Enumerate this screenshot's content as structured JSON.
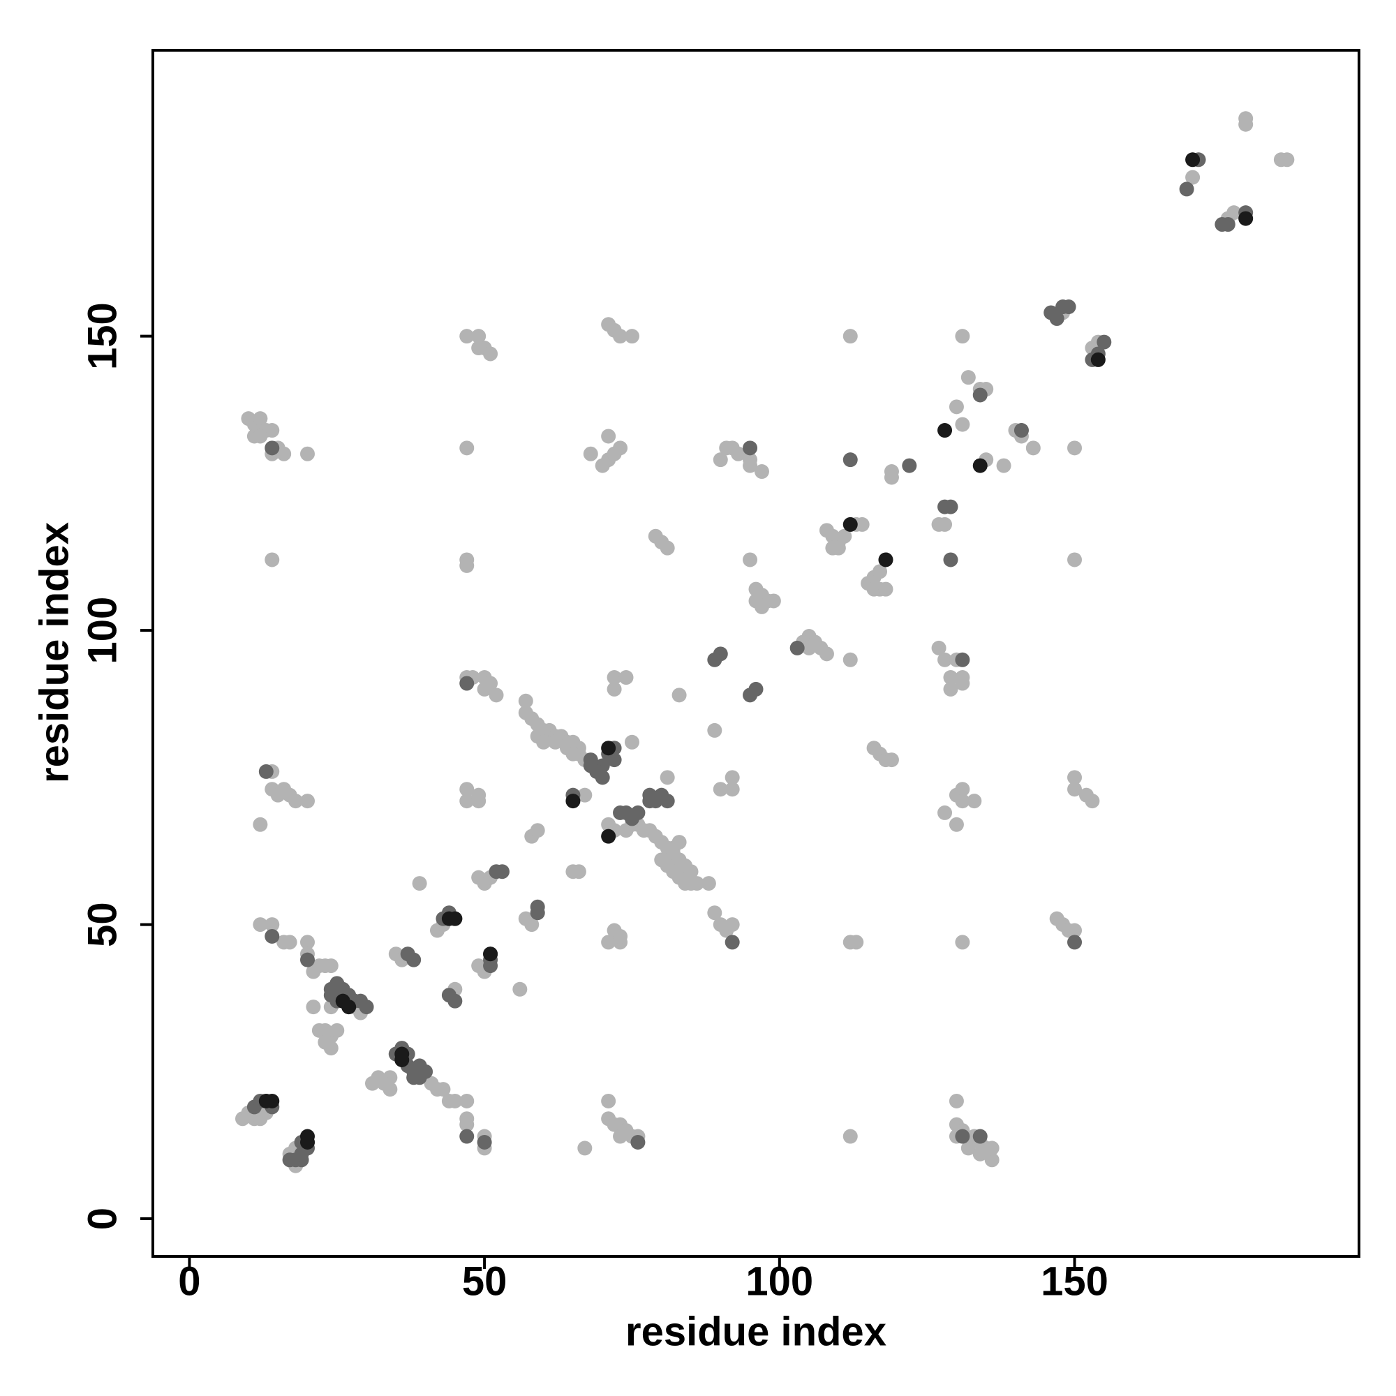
{
  "chart_data": {
    "type": "scatter",
    "xlabel": "residue index",
    "ylabel": "residue index",
    "xlim": [
      -6.2,
      198.2
    ],
    "ylim": [
      -6.4,
      198.6
    ],
    "xticks": [
      0,
      50,
      100,
      150
    ],
    "yticks": [
      0,
      50,
      100,
      150
    ],
    "grid": false,
    "series": [
      {
        "color": "#b3b3b3",
        "x": [
          179,
          179,
          185,
          186,
          170,
          176,
          177,
          147,
          148,
          153,
          154,
          71,
          72,
          73,
          75,
          47,
          49,
          50,
          51,
          49,
          112,
          131,
          10,
          11,
          12,
          13,
          14,
          11,
          12,
          15,
          14,
          16,
          20,
          47,
          68,
          70,
          71,
          72,
          73,
          71,
          90,
          91,
          92,
          93,
          95,
          95,
          97,
          130,
          131,
          132,
          134,
          135,
          135,
          140,
          141,
          141,
          138,
          143,
          150,
          119,
          119,
          127,
          128,
          79,
          80,
          81,
          108,
          109,
          110,
          111,
          112,
          113,
          114,
          110,
          109,
          115,
          116,
          117,
          118,
          116,
          117,
          118,
          14,
          47,
          47,
          95,
          96,
          97,
          98,
          99,
          96,
          97,
          150,
          105,
          106,
          107,
          108,
          104,
          105,
          112,
          127,
          128,
          130,
          129,
          131,
          131,
          129,
          47,
          48,
          50,
          51,
          50,
          52,
          72,
          74,
          72,
          83,
          57,
          57,
          58,
          59,
          60,
          61,
          62,
          63,
          64,
          65,
          66,
          66,
          67,
          59,
          60,
          62,
          64,
          65,
          75,
          89,
          116,
          117,
          118,
          119,
          14,
          14,
          15,
          16,
          17,
          18,
          20,
          12,
          47,
          47,
          49,
          49,
          81,
          90,
          92,
          92,
          130,
          131,
          131,
          133,
          128,
          130,
          150,
          150,
          152,
          153,
          67,
          71,
          72,
          74,
          75,
          76,
          77,
          78,
          79,
          80,
          81,
          82,
          83,
          80,
          81,
          82,
          83,
          84,
          85,
          86,
          88,
          82,
          83,
          84,
          85,
          58,
          59,
          65,
          66,
          39,
          49,
          50,
          51,
          57,
          58,
          59,
          89,
          90,
          91,
          92,
          71,
          72,
          73,
          73,
          12,
          14,
          16,
          17,
          20,
          20,
          22,
          23,
          24,
          21,
          35,
          36,
          37,
          42,
          43,
          49,
          50,
          51,
          112,
          113,
          131,
          147,
          148,
          149,
          150,
          56,
          45,
          21,
          24,
          28,
          29,
          30,
          22,
          23,
          24,
          25,
          23,
          24,
          32,
          34,
          31,
          33,
          34,
          35,
          36,
          41,
          42,
          43,
          44,
          45,
          47,
          47,
          47,
          50,
          50,
          9,
          10,
          11,
          12,
          12,
          13,
          17,
          18,
          17,
          18,
          67,
          71,
          71,
          72,
          73,
          73,
          74,
          75,
          76,
          112,
          130,
          130,
          131,
          130,
          132,
          133,
          134,
          134,
          135,
          136,
          136
        ],
        "y": [
          187,
          186,
          180,
          180,
          177,
          170,
          171,
          153,
          154,
          148,
          149,
          152,
          151,
          150,
          150,
          150,
          150,
          148,
          147,
          148,
          150,
          150,
          136,
          135,
          136,
          134,
          134,
          133,
          133,
          131,
          130,
          130,
          130,
          131,
          130,
          128,
          129,
          130,
          131,
          133,
          129,
          131,
          131,
          130,
          129,
          128,
          127,
          138,
          135,
          143,
          141,
          141,
          129,
          134,
          134,
          133,
          128,
          131,
          131,
          127,
          126,
          118,
          118,
          116,
          115,
          114,
          117,
          116,
          115,
          116,
          118,
          118,
          118,
          114,
          114,
          108,
          109,
          110,
          112,
          107,
          107,
          107,
          112,
          112,
          111,
          112,
          107,
          106,
          105,
          105,
          105,
          104,
          112,
          99,
          98,
          97,
          96,
          98,
          97,
          95,
          97,
          95,
          95,
          92,
          91,
          92,
          90,
          92,
          92,
          92,
          91,
          90,
          89,
          92,
          92,
          90,
          89,
          88,
          86,
          85,
          84,
          83,
          83,
          82,
          82,
          81,
          81,
          80,
          79,
          78,
          82,
          81,
          81,
          80,
          79,
          81,
          83,
          80,
          79,
          78,
          78,
          76,
          73,
          72,
          73,
          72,
          71,
          71,
          67,
          73,
          71,
          72,
          71,
          75,
          73,
          75,
          73,
          72,
          73,
          71,
          71,
          69,
          67,
          75,
          73,
          72,
          71,
          72,
          67,
          66,
          66,
          67,
          67,
          66,
          66,
          65,
          64,
          63,
          62,
          61,
          61,
          60,
          59,
          58,
          57,
          57,
          57,
          57,
          63,
          64,
          60,
          59,
          65,
          66,
          59,
          59,
          57,
          58,
          57,
          58,
          51,
          50,
          52,
          52,
          50,
          49,
          50,
          47,
          49,
          47,
          48,
          50,
          50,
          47,
          47,
          47,
          45,
          43,
          43,
          43,
          42,
          45,
          44,
          45,
          49,
          50,
          43,
          42,
          45,
          47,
          47,
          47,
          51,
          50,
          49,
          49,
          39,
          39,
          36,
          36,
          36,
          35,
          36,
          32,
          32,
          31,
          32,
          30,
          29,
          24,
          24,
          23,
          23,
          22,
          28,
          27,
          23,
          22,
          22,
          20,
          20,
          20,
          17,
          16,
          14,
          12,
          17,
          18,
          17,
          17,
          18,
          18,
          11,
          12,
          10,
          9,
          12,
          20,
          17,
          16,
          16,
          14,
          15,
          14,
          14,
          14,
          20,
          16,
          15,
          14,
          12,
          14,
          13,
          11,
          12,
          10,
          12
        ]
      },
      {
        "color": "#666666",
        "x": [
          171,
          169,
          175,
          176,
          179,
          146,
          147,
          148,
          149,
          153,
          154,
          155,
          14,
          95,
          112,
          122,
          128,
          129,
          141,
          134,
          131,
          103,
          90,
          89,
          96,
          95,
          47,
          78,
          79,
          80,
          81,
          78,
          73,
          74,
          75,
          76,
          71,
          72,
          70,
          69,
          70,
          68,
          68,
          72,
          65,
          52,
          53,
          59,
          59,
          44,
          45,
          43,
          37,
          38,
          51,
          51,
          51,
          13,
          14,
          20,
          24,
          25,
          26,
          27,
          24,
          25,
          26,
          27,
          28,
          29,
          30,
          35,
          36,
          37,
          37,
          38,
          39,
          38,
          39,
          40,
          44,
          45,
          150,
          131,
          134,
          11,
          12,
          13,
          14,
          17,
          18,
          19,
          19,
          20,
          20,
          19,
          47,
          50,
          76,
          92,
          129
        ],
        "y": [
          180,
          175,
          169,
          169,
          171,
          154,
          153,
          155,
          155,
          146,
          147,
          149,
          131,
          131,
          129,
          128,
          121,
          112,
          134,
          140,
          95,
          97,
          96,
          95,
          90,
          89,
          91,
          72,
          71,
          72,
          71,
          71,
          69,
          69,
          68,
          69,
          79,
          78,
          77,
          76,
          75,
          77,
          78,
          80,
          72,
          59,
          59,
          53,
          52,
          52,
          51,
          51,
          45,
          44,
          45,
          44,
          43,
          76,
          48,
          44,
          39,
          40,
          39,
          38,
          38,
          37,
          37,
          36,
          37,
          37,
          36,
          28,
          29,
          28,
          26,
          25,
          26,
          24,
          24,
          25,
          38,
          37,
          47,
          14,
          14,
          19,
          20,
          20,
          19,
          10,
          10,
          10,
          11,
          12,
          13,
          13,
          14,
          13,
          13,
          47,
          121
        ]
      },
      {
        "color": "#1a1a1a",
        "x": [
          170,
          179,
          154,
          128,
          134,
          112,
          118,
          71,
          71,
          65,
          44,
          45,
          51,
          26,
          27,
          36,
          36,
          14,
          13,
          20,
          20
        ],
        "y": [
          180,
          170,
          146,
          134,
          128,
          118,
          112,
          80,
          65,
          71,
          51,
          51,
          45,
          37,
          36,
          28,
          27,
          20,
          20,
          14,
          13
        ]
      }
    ]
  }
}
